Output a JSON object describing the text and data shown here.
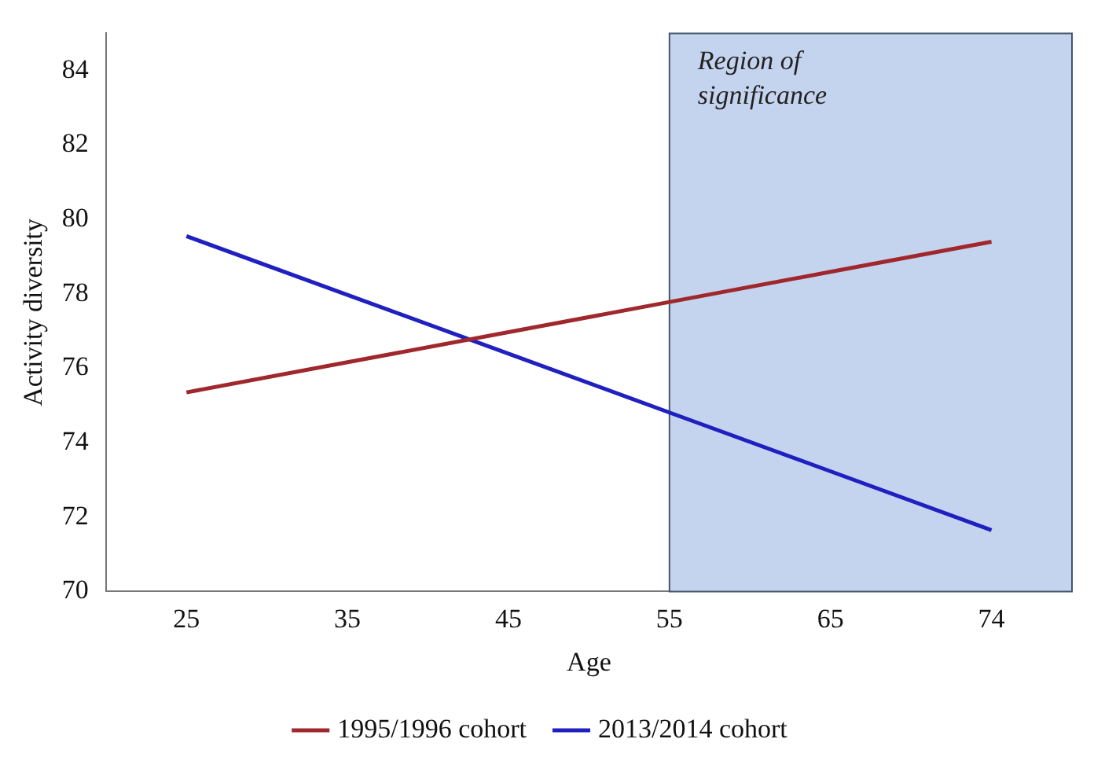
{
  "chart_data": {
    "type": "line",
    "xlabel": "Age",
    "ylabel": "Activity diversity",
    "categories": [
      "25",
      "35",
      "45",
      "55",
      "65",
      "74"
    ],
    "series": [
      {
        "name": "1995/1996 cohort",
        "color": "#a0282c",
        "values": [
          75.35,
          76.16,
          76.97,
          77.78,
          78.59,
          79.4
        ]
      },
      {
        "name": "2013/2014 cohort",
        "color": "#2020c0",
        "values": [
          79.55,
          77.97,
          76.39,
          74.81,
          73.23,
          71.65
        ]
      }
    ],
    "ylim": [
      70,
      85
    ],
    "yticks": [
      70,
      72,
      74,
      76,
      78,
      80,
      82,
      84
    ],
    "grid": false,
    "legend": "bottom",
    "marker": "none",
    "line_style": "solid",
    "bands": [
      {
        "axis": "x",
        "from": "55",
        "to": "74",
        "label": "Region of significance",
        "color": "#c5d4ee"
      }
    ]
  }
}
